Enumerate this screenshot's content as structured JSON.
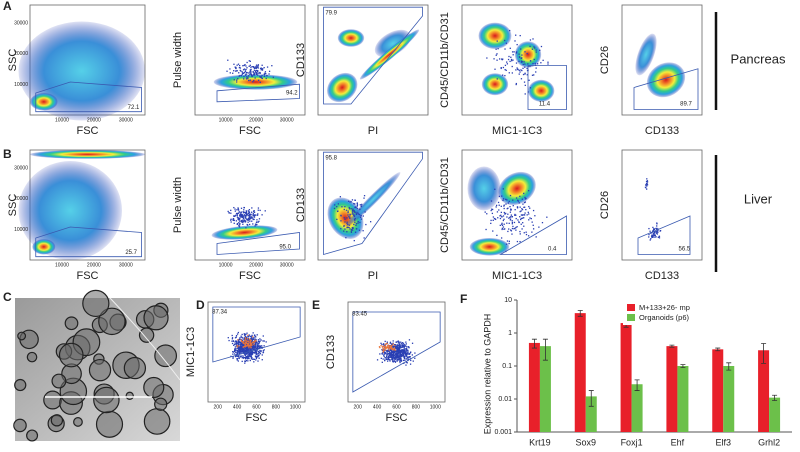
{
  "panels": {
    "A": {
      "label": "A",
      "tissue": "Pancreas",
      "plots": [
        {
          "y_label": "SSC",
          "x_label": "FSC",
          "gate": "72.1",
          "xticks": [
            "10000",
            "20000",
            "30000"
          ],
          "yticks": [
            "10000",
            "20000",
            "30000"
          ]
        },
        {
          "y_label": "Pulse width",
          "x_label": "FSC",
          "gate": "94.2",
          "xticks": [
            "10000",
            "20000",
            "30000"
          ]
        },
        {
          "y_label": "CD133",
          "x_label": "PI",
          "gate": "79.9"
        },
        {
          "y_label": "CD45/CD11b/CD31",
          "x_label": "MIC1-1C3",
          "gate": "11.4"
        },
        {
          "y_label": "CD26",
          "x_label": "CD133",
          "gate": "89.7"
        }
      ]
    },
    "B": {
      "label": "B",
      "tissue": "Liver",
      "plots": [
        {
          "y_label": "SSC",
          "x_label": "FSC",
          "gate": "25.7",
          "xticks": [
            "10000",
            "20000",
            "30000"
          ],
          "yticks": [
            "10000",
            "20000",
            "30000"
          ]
        },
        {
          "y_label": "Pulse width",
          "x_label": "FSC",
          "gate": "95.0",
          "xticks": [
            "10000",
            "20000",
            "30000"
          ]
        },
        {
          "y_label": "CD133",
          "x_label": "PI",
          "gate": "95.8"
        },
        {
          "y_label": "CD45/CD11b/CD31",
          "x_label": "MIC1-1C3",
          "gate": "0.4"
        },
        {
          "y_label": "CD26",
          "x_label": "CD133",
          "gate": "56.5"
        }
      ]
    },
    "C": {
      "label": "C"
    },
    "D": {
      "label": "D",
      "y_label": "MIC1-1C3",
      "x_label": "FSC",
      "gate": "87.34",
      "xticks": [
        "200",
        "400",
        "600",
        "800",
        "1000"
      ]
    },
    "E": {
      "label": "E",
      "y_label": "CD133",
      "x_label": "FSC",
      "gate": "83.45",
      "xticks": [
        "200",
        "400",
        "600",
        "800",
        "1000"
      ]
    }
  },
  "chart_data": {
    "type": "bar",
    "panel_label": "F",
    "y_label": "Expression relative to GAPDH",
    "log_scale": true,
    "categories": [
      "Krt19",
      "Sox9",
      "Foxj1",
      "Ehf",
      "Elf3",
      "Grhl2"
    ],
    "series": [
      {
        "name": "M+133+26- mp",
        "color": "#e8202a",
        "values": [
          0.5,
          4,
          2,
          0.4,
          0.32,
          0.3
        ],
        "errors": [
          0.15,
          0.8,
          0.5,
          0.03,
          0.03,
          0.18
        ]
      },
      {
        "name": "Organoids (p6)",
        "color": "#6cc04a",
        "values": [
          0.4,
          0.012,
          0.028,
          0.1,
          0.1,
          0.011
        ],
        "errors": [
          0.25,
          0.006,
          0.01,
          0.01,
          0.025,
          0.002
        ]
      }
    ],
    "ylim": [
      0.001,
      10
    ],
    "yticks": [
      0.001,
      0.01,
      0.1,
      1,
      10
    ],
    "legend": "top-right"
  }
}
